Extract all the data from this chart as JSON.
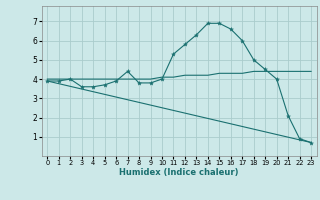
{
  "xlabel": "Humidex (Indice chaleur)",
  "xlim": [
    -0.5,
    23.5
  ],
  "ylim": [
    0,
    7.8
  ],
  "yticks": [
    1,
    2,
    3,
    4,
    5,
    6,
    7
  ],
  "xticks": [
    0,
    1,
    2,
    3,
    4,
    5,
    6,
    7,
    8,
    9,
    10,
    11,
    12,
    13,
    14,
    15,
    16,
    17,
    18,
    19,
    20,
    21,
    22,
    23
  ],
  "bg_color": "#cce8e8",
  "grid_color": "#aacccc",
  "line_color": "#1a7070",
  "curve1_x": [
    0,
    1,
    2,
    3,
    4,
    5,
    6,
    7,
    8,
    9,
    10,
    11,
    12,
    13,
    14,
    15,
    16,
    17,
    18,
    19,
    20,
    21,
    22,
    23
  ],
  "curve1_y": [
    3.9,
    3.9,
    4.0,
    3.6,
    3.6,
    3.7,
    3.9,
    4.4,
    3.8,
    3.8,
    4.0,
    5.3,
    5.8,
    6.3,
    6.9,
    6.9,
    6.6,
    6.0,
    5.0,
    4.5,
    4.0,
    2.1,
    0.9,
    0.7
  ],
  "curve2_x": [
    0,
    1,
    2,
    3,
    4,
    5,
    6,
    7,
    8,
    9,
    10,
    11,
    12,
    13,
    14,
    15,
    16,
    17,
    18,
    19,
    20,
    21,
    22,
    23
  ],
  "curve2_y": [
    4.0,
    4.0,
    4.0,
    4.0,
    4.0,
    4.0,
    4.0,
    4.0,
    4.0,
    4.0,
    4.1,
    4.1,
    4.2,
    4.2,
    4.2,
    4.3,
    4.3,
    4.3,
    4.4,
    4.4,
    4.4,
    4.4,
    4.4,
    4.4
  ],
  "curve3_x": [
    0,
    23
  ],
  "curve3_y": [
    3.9,
    0.7
  ]
}
